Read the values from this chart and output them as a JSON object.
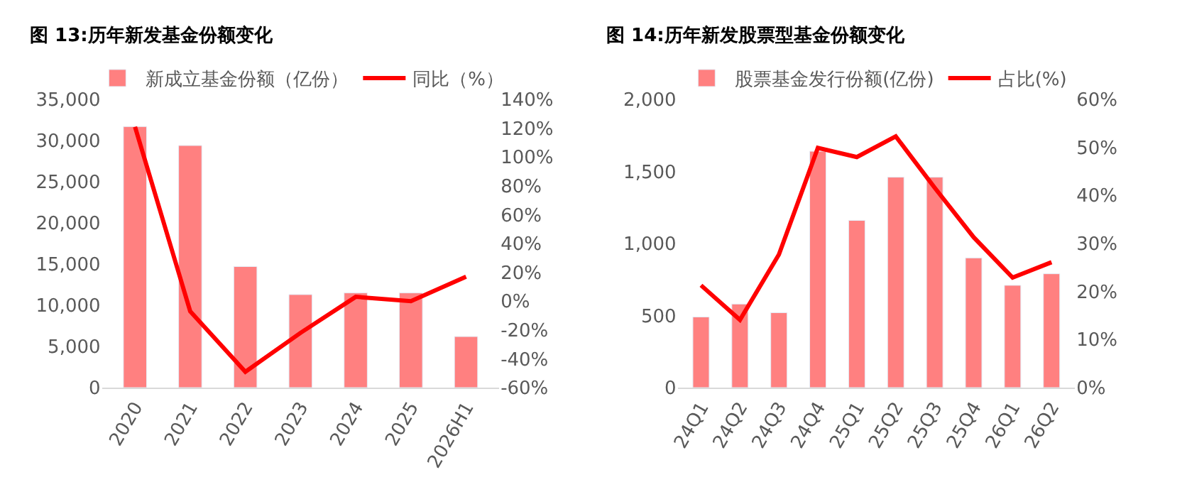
{
  "chart_data": [
    {
      "type": "bar",
      "title": "图 13:历年新发基金份额变化",
      "categories": [
        "2020",
        "2021",
        "2022",
        "2023",
        "2024",
        "2025",
        "2026H1"
      ],
      "series": [
        {
          "name": "新成立基金份额（亿份）",
          "color": "#ff8080",
          "values": [
            31700,
            29400,
            14700,
            11300,
            11500,
            11500,
            6200
          ]
        },
        {
          "name": "同比（%）",
          "type": "line",
          "axis": "y2",
          "color": "#ff0000",
          "values": [
            121,
            -7,
            -49,
            -22,
            3,
            0,
            17
          ]
        }
      ],
      "ylim": [
        0,
        35000
      ],
      "yticks": [
        0,
        {
          "value": 5000,
          "label": "5,000"
        },
        {
          "value": 10000,
          "label": "10,000"
        },
        {
          "value": 15000,
          "label": "15,000"
        },
        {
          "value": 20000,
          "label": "20,000"
        },
        {
          "value": 25000,
          "label": "25,000"
        },
        {
          "value": 30000,
          "label": "30,000"
        },
        {
          "value": 35000,
          "label": "35,000"
        }
      ],
      "y2lim": [
        -60,
        140
      ],
      "y2ticks": [
        {
          "value": -60,
          "label": "-60%"
        },
        {
          "value": -40,
          "label": "-40%"
        },
        {
          "value": -20,
          "label": "-20%"
        },
        {
          "value": 0,
          "label": "0%"
        },
        {
          "value": 20,
          "label": "20%"
        },
        {
          "value": 40,
          "label": "40%"
        },
        {
          "value": 60,
          "label": "60%"
        },
        {
          "value": 80,
          "label": "80%"
        },
        {
          "value": 100,
          "label": "100%"
        },
        {
          "value": 120,
          "label": "120%"
        },
        {
          "value": 140,
          "label": "140%"
        }
      ],
      "legend": "top"
    },
    {
      "type": "bar",
      "title": "图 14:历年新发股票型基金份额变化",
      "categories": [
        "24Q1",
        "24Q2",
        "24Q3",
        "24Q4",
        "25Q1",
        "25Q2",
        "25Q3",
        "25Q4",
        "26Q1",
        "26Q2"
      ],
      "series": [
        {
          "name": "股票基金发行份额(亿份)",
          "color": "#ff8080",
          "values": [
            490,
            580,
            520,
            1640,
            1160,
            1460,
            1460,
            900,
            710,
            790
          ]
        },
        {
          "name": "占比(%)",
          "type": "line",
          "axis": "y2",
          "color": "#ff0000",
          "values": [
            21.3,
            14.1,
            27.7,
            49.9,
            48.0,
            52.3,
            41.6,
            31.3,
            22.9,
            26.1
          ]
        }
      ],
      "ylim": [
        0,
        2000
      ],
      "yticks": [
        0,
        500,
        {
          "value": 1000,
          "label": "1,000"
        },
        {
          "value": 1500,
          "label": "1,500"
        },
        {
          "value": 2000,
          "label": "2,000"
        }
      ],
      "y2lim": [
        0,
        60
      ],
      "y2ticks": [
        {
          "value": 0,
          "label": "0%"
        },
        {
          "value": 10,
          "label": "10%"
        },
        {
          "value": 20,
          "label": "20%"
        },
        {
          "value": 30,
          "label": "30%"
        },
        {
          "value": 40,
          "label": "40%"
        },
        {
          "value": 50,
          "label": "50%"
        },
        {
          "value": 60,
          "label": "60%"
        }
      ],
      "legend": "top"
    }
  ]
}
